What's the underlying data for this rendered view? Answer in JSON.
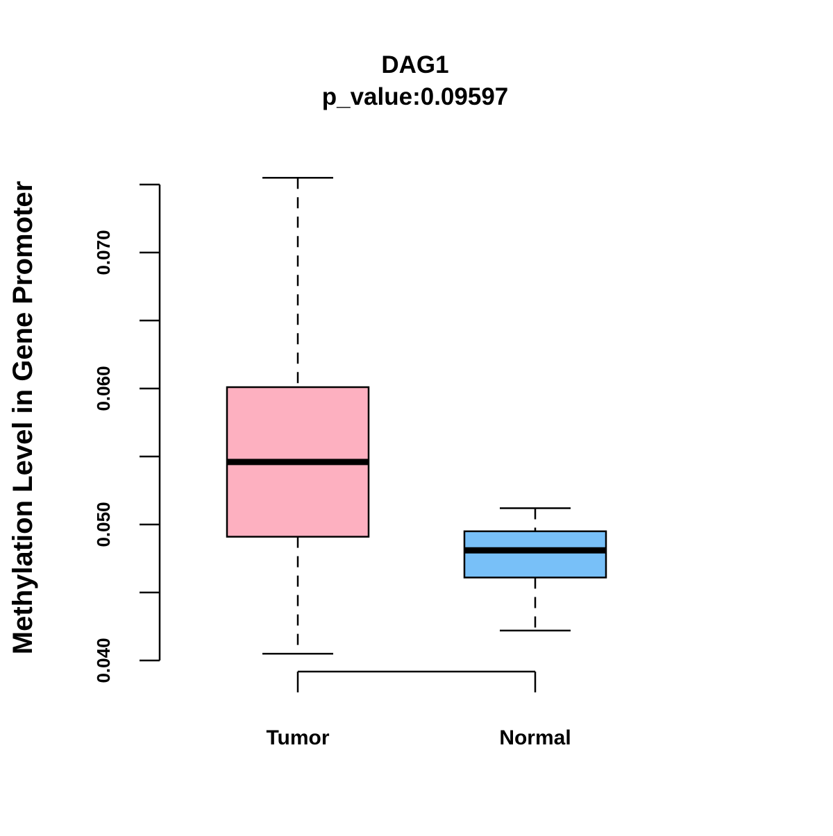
{
  "chart_data": {
    "type": "boxplot",
    "title": "DAG1",
    "subtitle": "p_value:0.09597",
    "xlabel": "",
    "ylabel": "Methylation Level in Gene Promoter",
    "ylim": [
      0.04,
      0.075
    ],
    "y_ticks": [
      0.04,
      0.045,
      0.05,
      0.055,
      0.06,
      0.065,
      0.07,
      0.075
    ],
    "y_tick_labels": [
      "0.040",
      "",
      "0.050",
      "",
      "0.060",
      "",
      "0.070",
      ""
    ],
    "categories": [
      "Tumor",
      "Normal"
    ],
    "boxes": [
      {
        "name": "Tumor",
        "whisker_low": 0.0405,
        "q1": 0.0491,
        "median": 0.0546,
        "q3": 0.0601,
        "whisker_high": 0.0755,
        "color": "#FDB0C0"
      },
      {
        "name": "Normal",
        "whisker_low": 0.0422,
        "q1": 0.0461,
        "median": 0.0481,
        "q3": 0.0495,
        "whisker_high": 0.0512,
        "color": "#78C0F8"
      }
    ],
    "grid": false,
    "legend": "none"
  }
}
